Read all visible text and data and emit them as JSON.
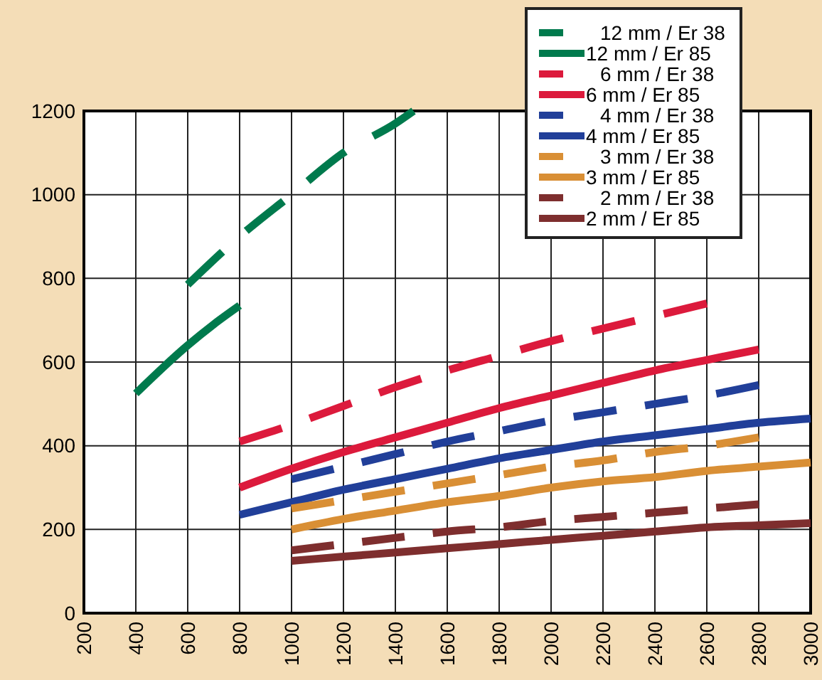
{
  "chart_data": {
    "type": "line",
    "xlim": [
      200,
      3000
    ],
    "xticks": [
      200,
      400,
      600,
      800,
      1000,
      1200,
      1400,
      1600,
      1800,
      2000,
      2200,
      2400,
      2600,
      2800,
      3000
    ],
    "ylim": [
      0,
      1200
    ],
    "yticks": [
      0,
      200,
      400,
      600,
      800,
      1000,
      1200
    ],
    "grid": true,
    "legend": "top right",
    "series": [
      {
        "name": "12 mm / Er 38",
        "color": "#007a4d",
        "line_style": "dashed",
        "x": [
          600,
          800,
          1000,
          1200,
          1400,
          1470
        ],
        "values": [
          785,
          900,
          1000,
          1100,
          1170,
          1200
        ]
      },
      {
        "name": "12 mm / Er 85",
        "color": "#007a4d",
        "line_style": "solid",
        "x": [
          400,
          600,
          700,
          800
        ],
        "values": [
          525,
          640,
          690,
          735
        ]
      },
      {
        "name": "6 mm / Er 38",
        "color": "#dc1a3c",
        "line_style": "dashed",
        "x": [
          800,
          1000,
          1200,
          1400,
          1600,
          1800,
          2000,
          2200,
          2400,
          2600
        ],
        "values": [
          410,
          450,
          495,
          540,
          580,
          615,
          650,
          680,
          710,
          740
        ]
      },
      {
        "name": "6 mm / Er 85",
        "color": "#dc1a3c",
        "line_style": "solid",
        "x": [
          800,
          1000,
          1200,
          1400,
          1600,
          1800,
          2000,
          2200,
          2400,
          2600,
          2800
        ],
        "values": [
          300,
          345,
          385,
          420,
          455,
          490,
          520,
          550,
          580,
          605,
          630
        ]
      },
      {
        "name": "4 mm / Er 38",
        "color": "#213f99",
        "line_style": "dashed",
        "x": [
          1000,
          1200,
          1400,
          1600,
          1800,
          2000,
          2200,
          2400,
          2600,
          2800
        ],
        "values": [
          320,
          350,
          380,
          410,
          435,
          460,
          480,
          500,
          520,
          545
        ]
      },
      {
        "name": "4 mm / Er 85",
        "color": "#213f99",
        "line_style": "solid",
        "x": [
          800,
          1000,
          1200,
          1400,
          1600,
          1800,
          2000,
          2200,
          2400,
          2600,
          2800,
          3000
        ],
        "values": [
          235,
          265,
          295,
          320,
          345,
          370,
          390,
          410,
          425,
          440,
          455,
          465
        ]
      },
      {
        "name": "3 mm / Er 38",
        "color": "#d98f35",
        "line_style": "dashed",
        "x": [
          1000,
          1200,
          1400,
          1600,
          1800,
          2000,
          2200,
          2400,
          2600,
          2800
        ],
        "values": [
          250,
          270,
          290,
          310,
          330,
          350,
          365,
          385,
          400,
          420
        ]
      },
      {
        "name": "3 mm / Er 85",
        "color": "#d98f35",
        "line_style": "solid",
        "x": [
          1000,
          1200,
          1400,
          1600,
          1800,
          2000,
          2200,
          2400,
          2600,
          2800,
          3000
        ],
        "values": [
          200,
          225,
          245,
          265,
          280,
          300,
          315,
          325,
          340,
          350,
          360
        ]
      },
      {
        "name": "2 mm / Er 38",
        "color": "#7e2e2e",
        "line_style": "dashed",
        "x": [
          1000,
          1200,
          1400,
          1600,
          1800,
          2000,
          2200,
          2400,
          2600,
          2800
        ],
        "values": [
          150,
          165,
          180,
          195,
          205,
          220,
          230,
          240,
          250,
          260
        ]
      },
      {
        "name": "2 mm / Er 85",
        "color": "#7e2e2e",
        "line_style": "solid",
        "x": [
          1000,
          1200,
          1400,
          1600,
          1800,
          2000,
          2200,
          2400,
          2600,
          2800,
          3000
        ],
        "values": [
          125,
          135,
          145,
          155,
          165,
          175,
          185,
          195,
          205,
          210,
          215
        ]
      }
    ]
  }
}
